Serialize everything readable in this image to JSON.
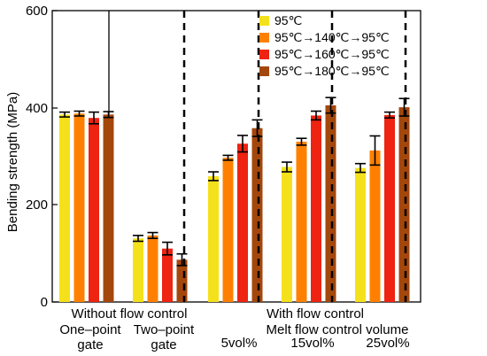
{
  "chart_data": {
    "type": "bar",
    "ylabel": "Bending strength (MPa)",
    "ylim": [
      0,
      600
    ],
    "y_ticks": [
      "0",
      "200",
      "400",
      "600"
    ],
    "series": [
      {
        "name": "95℃",
        "color": "#f5e11b"
      },
      {
        "name": "95℃→140℃→95℃",
        "color": "#ff8000"
      },
      {
        "name": "95℃→160℃→95℃",
        "color": "#ee2311"
      },
      {
        "name": "95℃→180℃→95℃",
        "color": "#a4470c"
      }
    ],
    "groups": [
      {
        "values": [
          386,
          388,
          379,
          386
        ],
        "errors": [
          5,
          5,
          12,
          6
        ]
      },
      {
        "values": [
          131,
          137,
          110,
          87
        ],
        "errors": [
          6,
          6,
          13,
          12
        ]
      },
      {
        "values": [
          259,
          297,
          326,
          358
        ],
        "errors": [
          9,
          5,
          17,
          17
        ]
      },
      {
        "values": [
          278,
          330,
          384,
          405
        ],
        "errors": [
          10,
          7,
          9,
          16
        ]
      },
      {
        "values": [
          276,
          312,
          385,
          401
        ],
        "errors": [
          9,
          30,
          6,
          18
        ]
      }
    ],
    "category_labels": {
      "without_flow_control": "Without flow control",
      "with_flow_control": "With flow control",
      "one_point_line1": "One–point",
      "one_point_line2": "gate",
      "two_point_line1": "Two–point",
      "two_point_line2": "gate",
      "melt_flow_volume": "Melt flow control volume",
      "vol_5": "5vol%",
      "vol_15": "15vol%",
      "vol_25": "25vol%"
    }
  }
}
